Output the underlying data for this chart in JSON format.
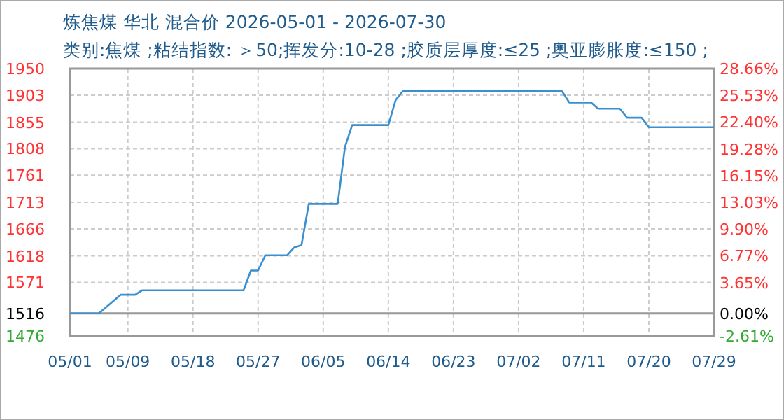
{
  "chart_data": {
    "type": "line",
    "title": "炼焦煤 华北 混合价 2026-05-01 - 2026-07-30",
    "subtitle": "类别:焦煤 ;粘结指数: ＞50;挥发分:10-28 ;胶质层厚度:≤25 ;奥亚膨胀度:≤150 ;",
    "x": [
      "2026-05-01",
      "2026-05-05",
      "2026-05-08",
      "2026-05-10",
      "2026-05-11",
      "2026-05-25",
      "2026-05-26",
      "2026-05-27",
      "2026-05-28",
      "2026-05-31",
      "2026-06-01",
      "2026-06-02",
      "2026-06-03",
      "2026-06-07",
      "2026-06-08",
      "2026-06-09",
      "2026-06-14",
      "2026-06-15",
      "2026-06-16",
      "2026-07-08",
      "2026-07-09",
      "2026-07-12",
      "2026-07-13",
      "2026-07-16",
      "2026-07-17",
      "2026-07-19",
      "2026-07-20",
      "2026-07-29"
    ],
    "series": [
      {
        "color": "#3a8fd0",
        "values": [
          1516,
          1516,
          1549,
          1549,
          1557,
          1557,
          1592,
          1592,
          1619,
          1619,
          1633,
          1637,
          1710,
          1710,
          1811,
          1850,
          1850,
          1894,
          1910,
          1910,
          1890,
          1890,
          1879,
          1879,
          1863,
          1863,
          1846,
          1846
        ]
      }
    ],
    "xlim": [
      "2026-05-01",
      "2026-07-29"
    ],
    "xticks": [
      {
        "value": "2026-05-01",
        "label": "05/01"
      },
      {
        "value": "2026-05-09",
        "label": "05/09"
      },
      {
        "value": "2026-05-18",
        "label": "05/18"
      },
      {
        "value": "2026-05-27",
        "label": "05/27"
      },
      {
        "value": "2026-06-05",
        "label": "06/05"
      },
      {
        "value": "2026-06-14",
        "label": "06/14"
      },
      {
        "value": "2026-06-23",
        "label": "06/23"
      },
      {
        "value": "2026-07-02",
        "label": "07/02"
      },
      {
        "value": "2026-07-11",
        "label": "07/11"
      },
      {
        "value": "2026-07-20",
        "label": "07/20"
      },
      {
        "value": "2026-07-29",
        "label": "07/29"
      }
    ],
    "ylim": [
      1476,
      1950
    ],
    "yticks": [
      1476,
      1516,
      1571,
      1618,
      1666,
      1713,
      1761,
      1808,
      1855,
      1903,
      1950
    ],
    "y2lim": [
      -2.61,
      28.66
    ],
    "y2ticks": [
      {
        "value": -2.61,
        "label": "-2.61%"
      },
      {
        "value": 0,
        "label": "0.00%"
      },
      {
        "value": 3.65,
        "label": "3.65%"
      },
      {
        "value": 6.77,
        "label": "6.77%"
      },
      {
        "value": 9.9,
        "label": "9.90%"
      },
      {
        "value": 13.03,
        "label": "13.03%"
      },
      {
        "value": 16.15,
        "label": "16.15%"
      },
      {
        "value": 19.28,
        "label": "19.28%"
      },
      {
        "value": 22.4,
        "label": "22.40%"
      },
      {
        "value": 25.53,
        "label": "25.53%"
      },
      {
        "value": 28.66,
        "label": "28.66%"
      }
    ],
    "ref_lines": [
      {
        "axis": "y",
        "value": 1516,
        "color": "#999999",
        "line_style": "solid"
      }
    ],
    "grid": true,
    "marker": "none",
    "line_style": "solid"
  }
}
